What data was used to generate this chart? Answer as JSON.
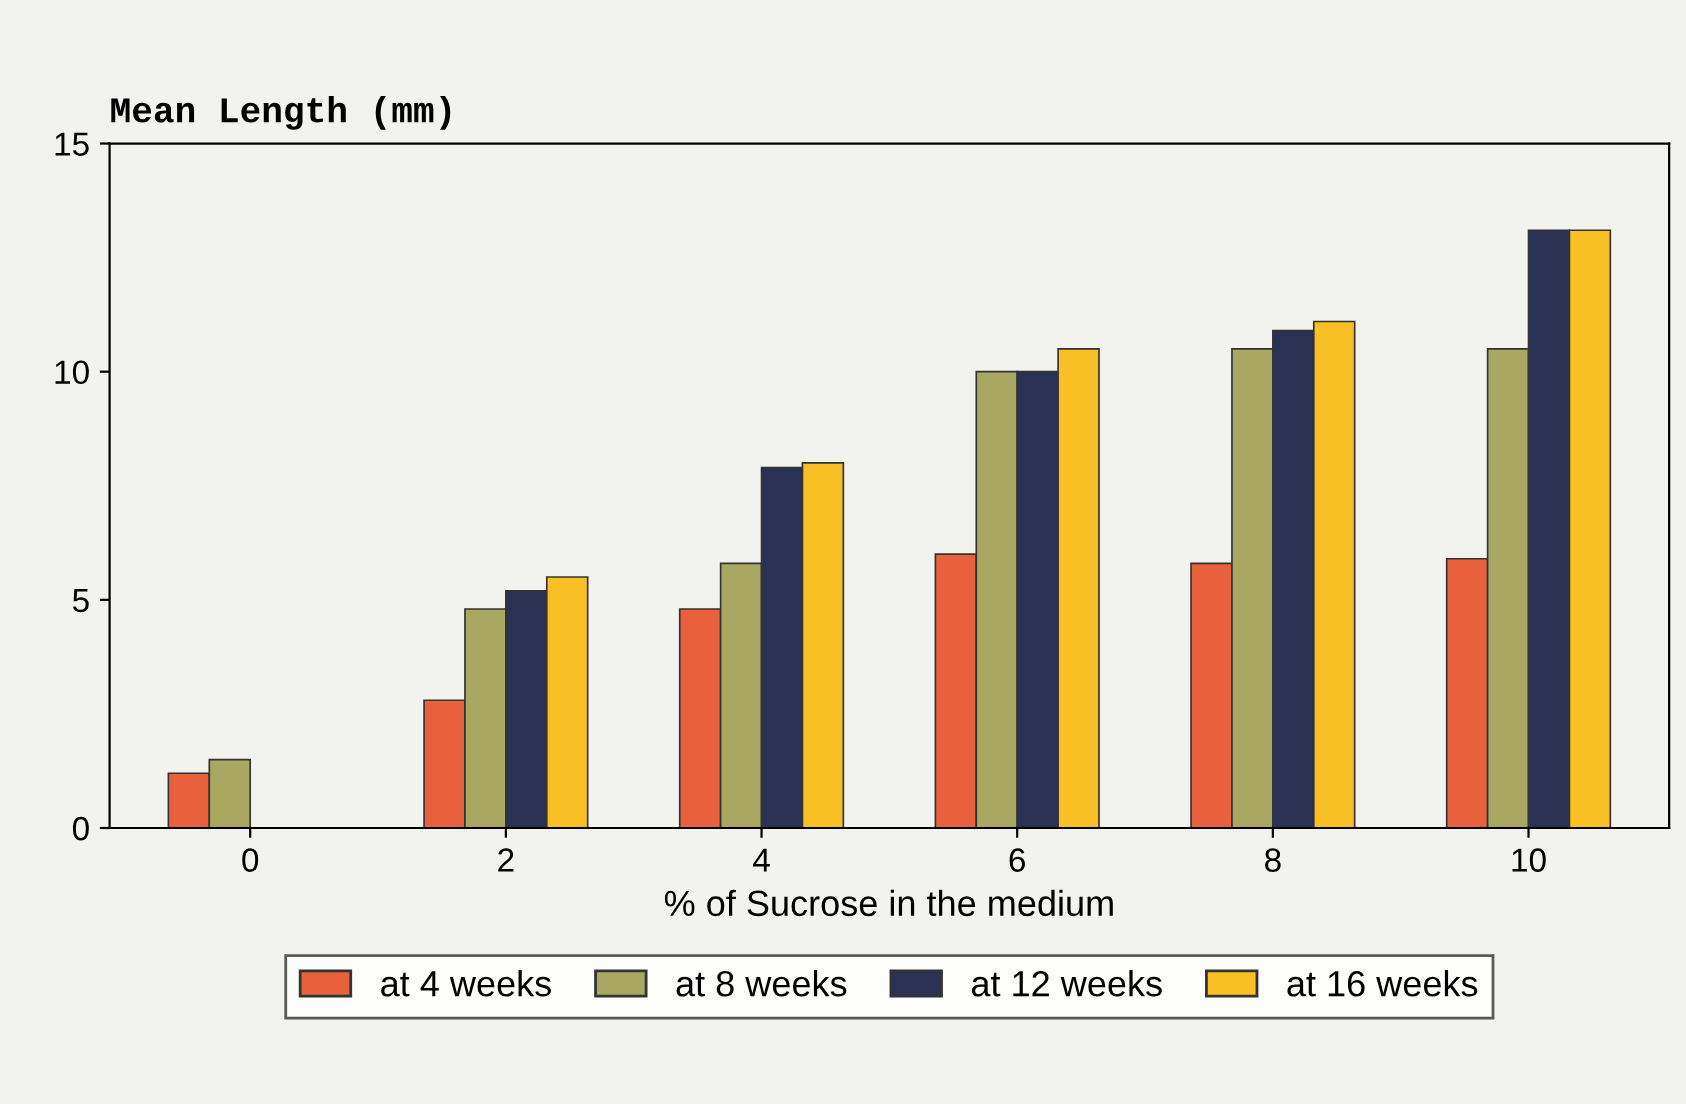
{
  "chart_data": {
    "type": "bar",
    "xlabel": "% of Sucrose in the medium",
    "ylabel": "Mean Length (mm)",
    "categories": [
      "0",
      "2",
      "4",
      "6",
      "8",
      "10"
    ],
    "series": [
      {
        "name": "at 4 weeks",
        "color": "#e8603c",
        "values": [
          1.2,
          2.8,
          4.8,
          6.0,
          5.8,
          5.9
        ]
      },
      {
        "name": "at 8 weeks",
        "color": "#a8a862",
        "values": [
          1.5,
          4.8,
          5.8,
          10.0,
          10.5,
          10.5
        ]
      },
      {
        "name": "at 12 weeks",
        "color": "#2b3152",
        "values": [
          null,
          5.2,
          7.9,
          10.0,
          10.9,
          13.1
        ]
      },
      {
        "name": "at 16 weeks",
        "color": "#f8c024",
        "values": [
          null,
          5.5,
          8.0,
          10.5,
          11.1,
          13.1
        ]
      }
    ],
    "ylim": [
      0,
      15
    ],
    "yticks": [
      0,
      5,
      10,
      15
    ],
    "grid": false,
    "legend": "bottom"
  }
}
